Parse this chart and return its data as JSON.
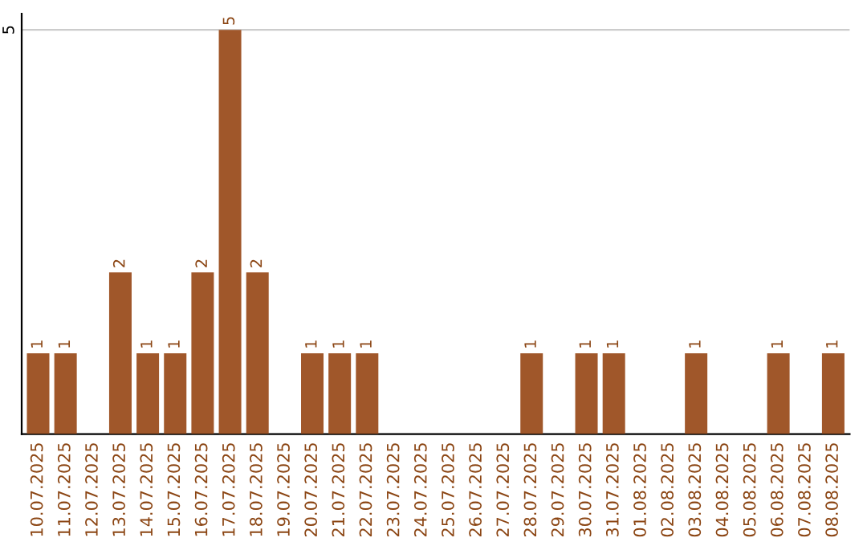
{
  "chart_data": {
    "type": "bar",
    "categories": [
      "10.07.2025",
      "11.07.2025",
      "12.07.2025",
      "13.07.2025",
      "14.07.2025",
      "15.07.2025",
      "16.07.2025",
      "17.07.2025",
      "18.07.2025",
      "19.07.2025",
      "20.07.2025",
      "21.07.2025",
      "22.07.2025",
      "23.07.2025",
      "24.07.2025",
      "25.07.2025",
      "26.07.2025",
      "27.07.2025",
      "28.07.2025",
      "29.07.2025",
      "30.07.2025",
      "31.07.2025",
      "01.08.2025",
      "02.08.2025",
      "03.08.2025",
      "04.08.2025",
      "05.08.2025",
      "06.08.2025",
      "07.08.2025",
      "08.08.2025"
    ],
    "values": [
      1,
      1,
      0,
      2,
      1,
      1,
      2,
      5,
      2,
      0,
      1,
      1,
      1,
      0,
      0,
      0,
      0,
      0,
      1,
      0,
      1,
      1,
      0,
      0,
      1,
      0,
      0,
      1,
      0,
      1
    ],
    "value_labels": [
      "1",
      "1",
      null,
      "2",
      "1",
      "1",
      "2",
      "5",
      "2",
      null,
      "1",
      "1",
      "1",
      null,
      null,
      null,
      null,
      null,
      "1",
      null,
      "1",
      "1",
      null,
      null,
      "1",
      null,
      null,
      "1",
      null,
      "1"
    ],
    "color": "#a0572a",
    "ylim": [
      0,
      5.2
    ],
    "yticks": [
      5
    ],
    "grid": "y",
    "legend": false
  }
}
